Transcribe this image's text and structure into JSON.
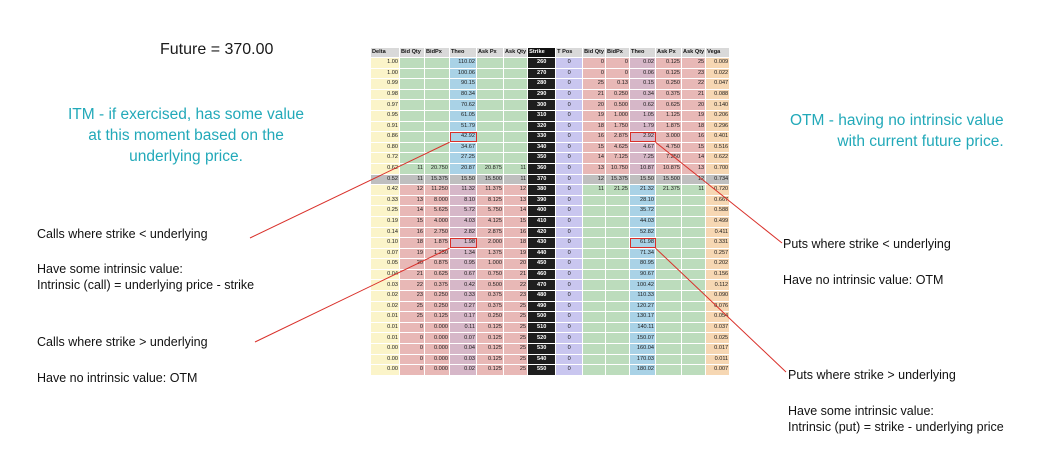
{
  "future_label": "Future = 370.00",
  "itm_note": [
    "ITM - if exercised, has some value",
    "at this moment based on the",
    "underlying price."
  ],
  "otm_note": [
    "OTM - having no intrinsic value",
    "with current future price."
  ],
  "left_notes": {
    "calls_itm": "Calls where strike < underlying",
    "calls_itm_value_1": "Have some intrinsic value:",
    "calls_itm_value_2": "Intrinsic (call) = underlying price - strike",
    "calls_otm": "Calls where strike > underlying",
    "calls_otm_value": "Have no intrinsic value: OTM"
  },
  "right_notes": {
    "puts_otm": "Puts where strike < underlying",
    "puts_otm_value": "Have no intrinsic value: OTM",
    "puts_itm": "Puts where strike > underlying",
    "puts_itm_value_1": "Have some intrinsic value:",
    "puts_itm_value_2": "Intrinsic (put) = strike - underlying price"
  },
  "columns": [
    "Delta",
    "Bid Qty",
    "BidPx",
    "Theo",
    "Ask Px",
    "Ask Qty",
    "Strike",
    "T Pos",
    "Bid Qty",
    "BidPx",
    "Theo",
    "Ask Px",
    "Ask Qty",
    "Vega"
  ],
  "atm_strike": "370",
  "rows": [
    [
      "1.00",
      "",
      "",
      "110.02",
      "",
      "",
      "260",
      "0",
      "0",
      "0",
      "0.02",
      "0.125",
      "25",
      "0.009"
    ],
    [
      "1.00",
      "",
      "",
      "100.06",
      "",
      "",
      "270",
      "0",
      "0",
      "0",
      "0.06",
      "0.125",
      "23",
      "0.022"
    ],
    [
      "0.99",
      "",
      "",
      "90.15",
      "",
      "",
      "280",
      "0",
      "25",
      "0.13",
      "0.15",
      "0.250",
      "22",
      "0.047"
    ],
    [
      "0.98",
      "",
      "",
      "80.34",
      "",
      "",
      "290",
      "0",
      "21",
      "0.250",
      "0.34",
      "0.375",
      "21",
      "0.088"
    ],
    [
      "0.97",
      "",
      "",
      "70.62",
      "",
      "",
      "300",
      "0",
      "20",
      "0.500",
      "0.62",
      "0.625",
      "20",
      "0.140"
    ],
    [
      "0.95",
      "",
      "",
      "61.05",
      "",
      "",
      "310",
      "0",
      "19",
      "1.000",
      "1.05",
      "1.125",
      "19",
      "0.206"
    ],
    [
      "0.91",
      "",
      "",
      "51.79",
      "",
      "",
      "320",
      "0",
      "18",
      "1.750",
      "1.79",
      "1.875",
      "18",
      "0.296"
    ],
    [
      "0.86",
      "",
      "",
      "42.92",
      "",
      "",
      "330",
      "0",
      "16",
      "2.875",
      "2.92",
      "3.000",
      "16",
      "0.401"
    ],
    [
      "0.80",
      "",
      "",
      "34.67",
      "",
      "",
      "340",
      "0",
      "15",
      "4.625",
      "4.67",
      "4.750",
      "15",
      "0.516"
    ],
    [
      "0.72",
      "",
      "",
      "27.25",
      "",
      "",
      "350",
      "0",
      "14",
      "7.125",
      "7.25",
      "7.250",
      "14",
      "0.622"
    ],
    [
      "0.62",
      "11",
      "20.750",
      "20.87",
      "20.875",
      "11",
      "360",
      "0",
      "13",
      "10.750",
      "10.87",
      "10.875",
      "13",
      "0.700"
    ],
    [
      "0.52",
      "11",
      "15.375",
      "15.50",
      "15.500",
      "11",
      "370",
      "0",
      "12",
      "15.375",
      "15.50",
      "15.500",
      "12",
      "0.734"
    ],
    [
      "0.42",
      "12",
      "11.250",
      "11.32",
      "11.375",
      "12",
      "380",
      "0",
      "11",
      "21.25",
      "21.32",
      "21.375",
      "11",
      "0.720"
    ],
    [
      "0.33",
      "13",
      "8.000",
      "8.10",
      "8.125",
      "13",
      "390",
      "0",
      "",
      "",
      "28.10",
      "",
      "",
      "0.667"
    ],
    [
      "0.25",
      "14",
      "5.625",
      "5.72",
      "5.750",
      "14",
      "400",
      "0",
      "",
      "",
      "35.72",
      "",
      "",
      "0.588"
    ],
    [
      "0.19",
      "15",
      "4.000",
      "4.03",
      "4.125",
      "15",
      "410",
      "0",
      "",
      "",
      "44.03",
      "",
      "",
      "0.499"
    ],
    [
      "0.14",
      "16",
      "2.750",
      "2.82",
      "2.875",
      "16",
      "420",
      "0",
      "",
      "",
      "52.82",
      "",
      "",
      "0.411"
    ],
    [
      "0.10",
      "18",
      "1.875",
      "1.98",
      "2.000",
      "18",
      "430",
      "0",
      "",
      "",
      "61.98",
      "",
      "",
      "0.331"
    ],
    [
      "0.07",
      "19",
      "1.250",
      "1.34",
      "1.375",
      "19",
      "440",
      "0",
      "",
      "",
      "71.34",
      "",
      "",
      "0.257"
    ],
    [
      "0.05",
      "20",
      "0.875",
      "0.95",
      "1.000",
      "20",
      "450",
      "0",
      "",
      "",
      "80.95",
      "",
      "",
      "0.202"
    ],
    [
      "0.04",
      "21",
      "0.625",
      "0.67",
      "0.750",
      "21",
      "460",
      "0",
      "",
      "",
      "90.67",
      "",
      "",
      "0.156"
    ],
    [
      "0.03",
      "22",
      "0.375",
      "0.42",
      "0.500",
      "22",
      "470",
      "0",
      "",
      "",
      "100.42",
      "",
      "",
      "0.112"
    ],
    [
      "0.02",
      "23",
      "0.250",
      "0.33",
      "0.375",
      "23",
      "480",
      "0",
      "",
      "",
      "110.33",
      "",
      "",
      "0.090"
    ],
    [
      "0.02",
      "25",
      "0.250",
      "0.27",
      "0.375",
      "25",
      "490",
      "0",
      "",
      "",
      "120.27",
      "",
      "",
      "0.076"
    ],
    [
      "0.01",
      "25",
      "0.125",
      "0.17",
      "0.250",
      "25",
      "500",
      "0",
      "",
      "",
      "130.17",
      "",
      "",
      "0.054"
    ],
    [
      "0.01",
      "0",
      "0.000",
      "0.11",
      "0.125",
      "25",
      "510",
      "0",
      "",
      "",
      "140.11",
      "",
      "",
      "0.037"
    ],
    [
      "0.01",
      "0",
      "0.000",
      "0.07",
      "0.125",
      "25",
      "520",
      "0",
      "",
      "",
      "150.07",
      "",
      "",
      "0.025"
    ],
    [
      "0.00",
      "0",
      "0.000",
      "0.04",
      "0.125",
      "25",
      "530",
      "0",
      "",
      "",
      "160.04",
      "",
      "",
      "0.017"
    ],
    [
      "0.00",
      "0",
      "0.000",
      "0.03",
      "0.125",
      "25",
      "540",
      "0",
      "",
      "",
      "170.03",
      "",
      "",
      "0.011"
    ],
    [
      "0.00",
      "0",
      "0.000",
      "0.02",
      "0.125",
      "25",
      "550",
      "0",
      "",
      "",
      "180.02",
      "",
      "",
      "0.007"
    ]
  ],
  "highlighted_cells": [
    {
      "strike": "330",
      "side": "call"
    },
    {
      "strike": "330",
      "side": "put"
    },
    {
      "strike": "430",
      "side": "call"
    },
    {
      "strike": "430",
      "side": "put"
    }
  ],
  "colors": {
    "annotation_teal": "#22a9b9",
    "pointer_line": "#d9302a",
    "itm_green": "#bcdcbc",
    "otm_red": "#e8b8b6",
    "strike_black": "#1e1e1e",
    "tpos_lavender": "#c9c6ef"
  }
}
